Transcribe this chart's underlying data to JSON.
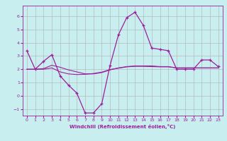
{
  "title": "",
  "xlabel": "Windchill (Refroidissement éolien,°C)",
  "bg_color": "#c8eef0",
  "line_color": "#9b1f9b",
  "grid_color": "#b0b0b0",
  "x": [
    0,
    1,
    2,
    3,
    4,
    5,
    6,
    7,
    8,
    9,
    10,
    11,
    12,
    13,
    14,
    15,
    16,
    17,
    18,
    19,
    20,
    21,
    22,
    23
  ],
  "y_main": [
    3.4,
    2.0,
    2.6,
    3.1,
    1.5,
    0.8,
    0.2,
    -1.3,
    -1.3,
    -0.6,
    2.3,
    4.6,
    5.9,
    6.3,
    5.3,
    3.6,
    3.5,
    3.4,
    2.0,
    2.0,
    2.0,
    2.7,
    2.7,
    2.2
  ],
  "y_smooth1": [
    2.0,
    2.0,
    2.05,
    2.3,
    2.15,
    1.95,
    1.8,
    1.65,
    1.65,
    1.75,
    1.95,
    2.1,
    2.2,
    2.25,
    2.25,
    2.25,
    2.2,
    2.2,
    2.1,
    2.1,
    2.1,
    2.1,
    2.1,
    2.1
  ],
  "y_smooth2": [
    2.0,
    2.0,
    2.0,
    2.1,
    1.8,
    1.65,
    1.6,
    1.62,
    1.68,
    1.78,
    1.98,
    2.08,
    2.18,
    2.22,
    2.22,
    2.2,
    2.18,
    2.18,
    2.1,
    2.1,
    2.1,
    2.1,
    2.1,
    2.1
  ],
  "ylim": [
    -1.5,
    6.8
  ],
  "xlim": [
    -0.5,
    23.5
  ],
  "yticks": [
    -1,
    0,
    1,
    2,
    3,
    4,
    5,
    6
  ],
  "xticks": [
    0,
    1,
    2,
    3,
    4,
    5,
    6,
    7,
    8,
    9,
    10,
    11,
    12,
    13,
    14,
    15,
    16,
    17,
    18,
    19,
    20,
    21,
    22,
    23
  ]
}
